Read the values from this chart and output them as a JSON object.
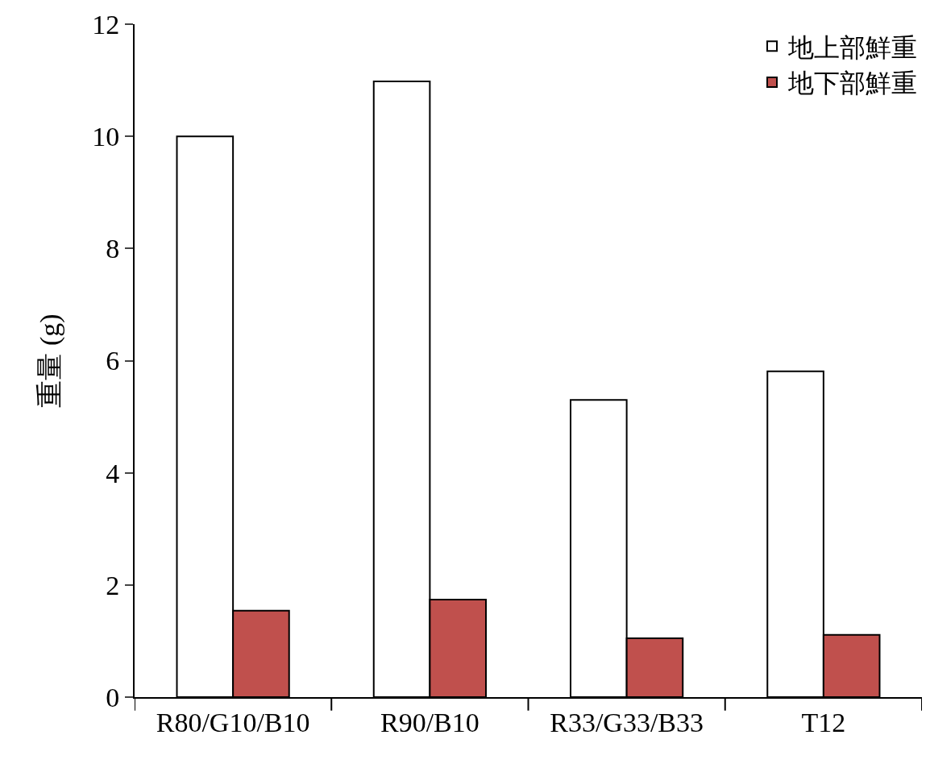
{
  "chart_data": {
    "type": "bar",
    "ylabel": "重量 (g)",
    "categories": [
      "R80/G10/B10",
      "R90/B10",
      "R33/G33/B33",
      "T12"
    ],
    "series": [
      {
        "name": "地上部鮮重",
        "color": "#ffffff",
        "values": [
          10.0,
          10.98,
          5.3,
          5.81
        ]
      },
      {
        "name": "地下部鮮重",
        "color": "#c0504d",
        "values": [
          1.54,
          1.74,
          1.05,
          1.11
        ]
      }
    ],
    "ylim": [
      0,
      12
    ],
    "yticks": [
      0,
      2,
      4,
      6,
      8,
      10,
      12
    ],
    "legend": "top right"
  }
}
